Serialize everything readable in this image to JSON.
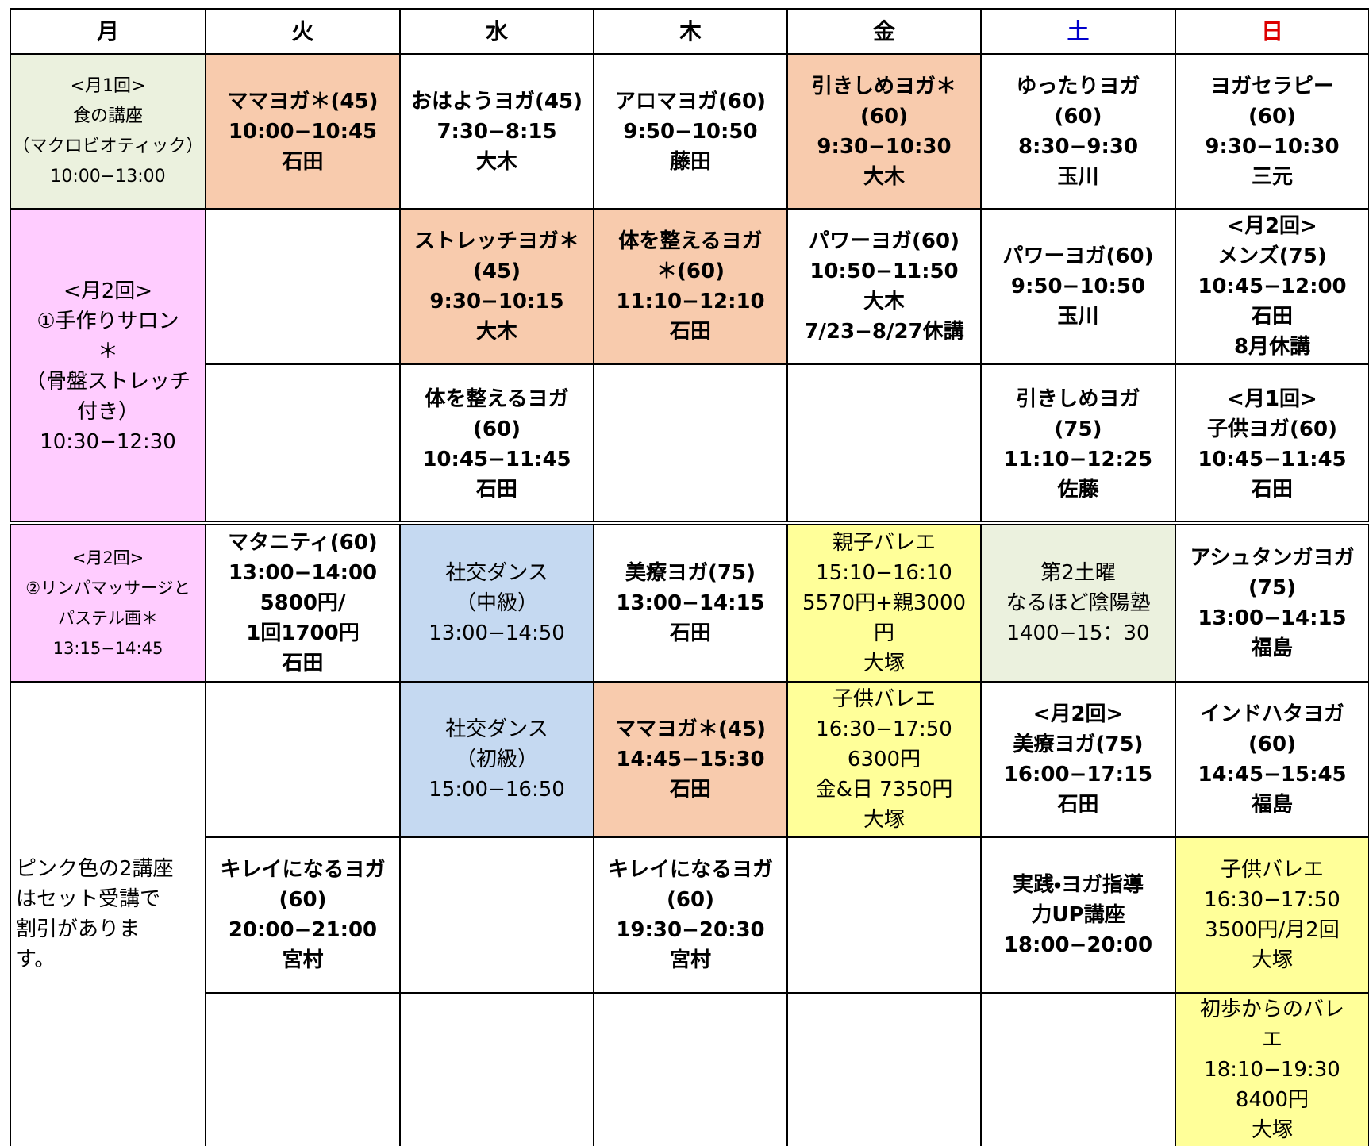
{
  "header": {
    "days": [
      "月",
      "火",
      "水",
      "木",
      "金",
      "土",
      "日"
    ]
  },
  "cells": [
    {
      "lines": [
        "<月1回>",
        "食の講座",
        "（マクロビオティック）",
        "10:00−13:00"
      ]
    },
    {
      "lines": [
        "<月2回>",
        "①手作りサロン",
        "＊",
        "（骨盤ストレッチ",
        "付き）",
        "10:30−12:30"
      ]
    },
    {
      "lines": [
        "<月2回>",
        "②リンパマッサージと",
        "パステル画＊",
        "13:15−14:45"
      ]
    },
    {
      "lines": [
        "ピンク色の2講座",
        "はセット受講で",
        "割引がありま",
        "す。"
      ]
    },
    {
      "lines": [
        "ママヨガ＊(45)",
        "10:00−10:45",
        "石田"
      ]
    },
    {
      "lines": [
        "マタニティ(60)",
        "13:00−14:00",
        "5800円/",
        "1回1700円",
        "石田"
      ]
    },
    {
      "lines": [
        "キレイになるヨガ",
        "(60)",
        "20:00−21:00",
        "宮村"
      ]
    },
    {
      "lines": [
        "おはようヨガ(45)",
        "7:30−8:15",
        "大木"
      ]
    },
    {
      "lines": [
        "ストレッチヨガ＊",
        "(45)",
        "9:30−10:15",
        "大木"
      ]
    },
    {
      "lines": [
        "体を整えるヨガ",
        "(60)",
        "10:45−11:45",
        "石田"
      ]
    },
    {
      "lines": [
        "社交ダンス",
        "（中級）",
        "13:00−14:50"
      ]
    },
    {
      "lines": [
        "社交ダンス",
        "（初級）",
        "15:00−16:50"
      ]
    },
    {
      "lines": [
        "アロマヨガ(60)",
        "9:50−10:50",
        "藤田"
      ]
    },
    {
      "lines": [
        "体を整えるヨガ",
        "＊(60)",
        "11:10−12:10",
        "石田"
      ]
    },
    {
      "lines": [
        "美療ヨガ(75)",
        "13:00−14:15",
        "石田"
      ]
    },
    {
      "lines": [
        "ママヨガ＊(45)",
        "14:45−15:30",
        "石田"
      ]
    },
    {
      "lines": [
        "キレイになるヨガ",
        "(60)",
        "19:30−20:30",
        "宮村"
      ]
    },
    {
      "lines": [
        "引きしめヨガ＊",
        "(60)",
        "9:30−10:30",
        "大木"
      ]
    },
    {
      "lines": [
        "パワーヨガ(60)",
        "10:50−11:50",
        "大木",
        "7/23−8/27休講"
      ]
    },
    {
      "lines": [
        "親子バレエ",
        "15:10−16:10",
        "5570円+親3000",
        "円",
        "大塚"
      ]
    },
    {
      "lines": [
        "子供バレエ",
        "16:30−17:50",
        "6300円",
        "金&日 7350円",
        "大塚"
      ]
    },
    {
      "lines": [
        "ゆったりヨガ",
        "(60)",
        "8:30−9:30",
        "玉川"
      ]
    },
    {
      "lines": [
        "パワーヨガ(60)",
        "9:50−10:50",
        "玉川"
      ]
    },
    {
      "lines": [
        "引きしめヨガ",
        "(75)",
        "11:10−12:25",
        "佐藤"
      ]
    },
    {
      "lines": [
        "第2土曜",
        "なるほど陰陽塾",
        "1400−15：30"
      ]
    },
    {
      "lines": [
        "<月2回>",
        "美療ヨガ(75)",
        "16:00−17:15",
        "石田"
      ]
    },
    {
      "lines": [
        "実践・ヨガ指導",
        "力UP講座",
        "18:00−20:00"
      ]
    },
    {
      "lines": [
        "ヨガセラピー",
        "(60)",
        "9:30−10:30",
        "三元"
      ]
    },
    {
      "lines": [
        "<月2回>",
        "メンズ(75)",
        "10:45−12:00",
        "石田",
        "8月休講"
      ]
    },
    {
      "lines": [
        "<月1回>",
        "子供ヨガ(60)",
        "10:45−11:45",
        "石田"
      ]
    },
    {
      "lines": [
        "アシュタンガヨガ",
        "(75)",
        "13:00−14:15",
        "福島"
      ]
    },
    {
      "lines": [
        "インドハタヨガ",
        "(60)",
        "14:45−15:45",
        "福島"
      ]
    },
    {
      "lines": [
        "子供バレエ",
        "16:30−17:50",
        "3500円/月2回",
        "大塚"
      ]
    },
    {
      "lines": [
        "初歩からのバレ",
        "エ",
        "18:10−19:30",
        "8400円",
        "大塚"
      ]
    }
  ]
}
